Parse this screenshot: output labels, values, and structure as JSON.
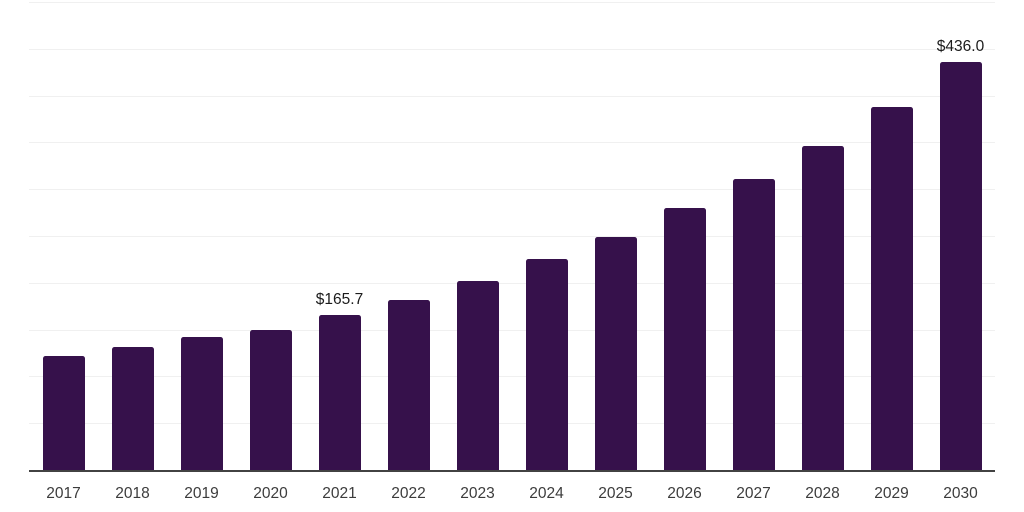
{
  "chart_data": {
    "type": "bar",
    "title": "",
    "xlabel": "",
    "ylabel": "",
    "categories": [
      "2017",
      "2018",
      "2019",
      "2020",
      "2021",
      "2022",
      "2023",
      "2024",
      "2025",
      "2026",
      "2027",
      "2028",
      "2029",
      "2030"
    ],
    "values": [
      122,
      131,
      142,
      150,
      165.7,
      182,
      202,
      225,
      249,
      280,
      311,
      346,
      388,
      436
    ],
    "data_labels": {
      "2021": "$165.7",
      "2030": "$436.0"
    },
    "ylim": [
      0,
      500
    ],
    "gridline_step": 50,
    "grid": true,
    "legend": false,
    "y_axis_tick_labels": "hidden"
  },
  "colors": {
    "background": "#FFFFFF",
    "bar": "#36114B",
    "gridline": "#F0F0F0",
    "axis_line": "#424242",
    "tick_label": "#3C3C3C",
    "data_label": "#1C1C1C"
  }
}
